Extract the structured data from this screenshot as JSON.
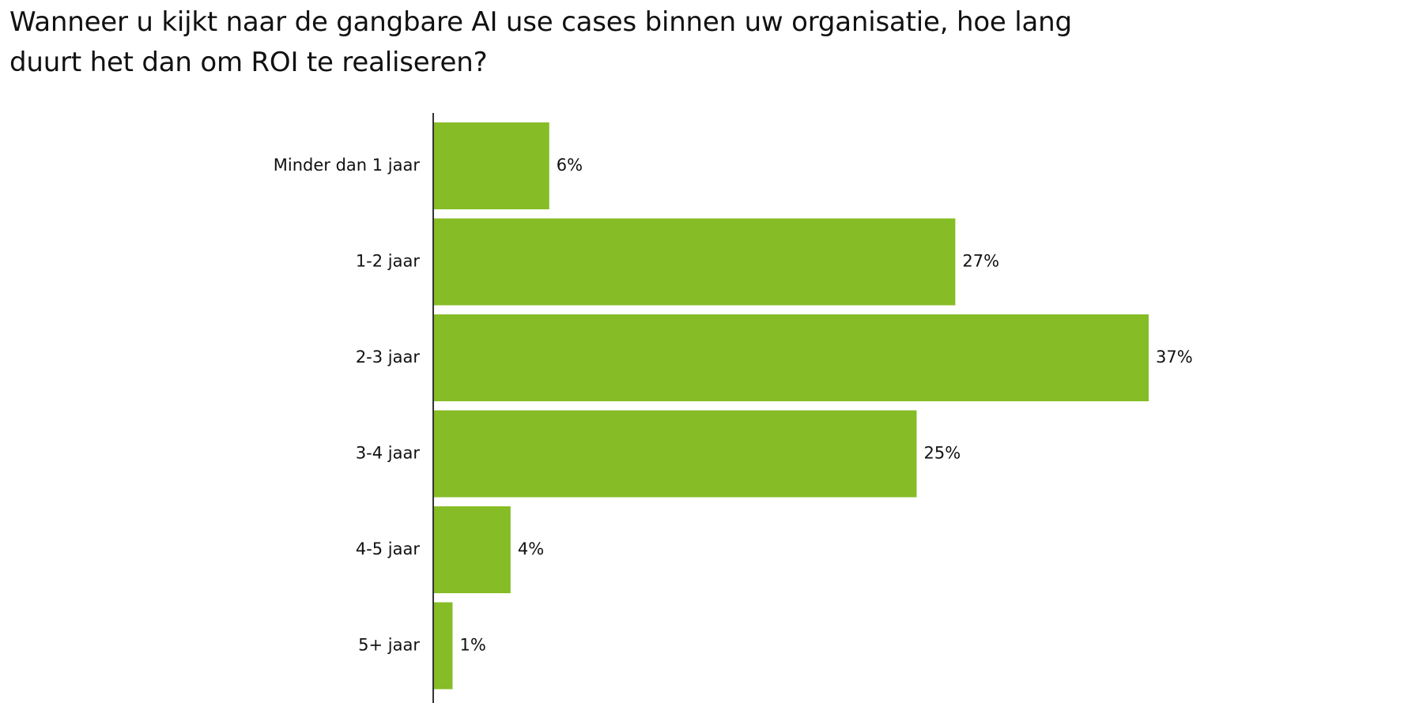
{
  "chart_data": {
    "type": "bar",
    "orientation": "horizontal",
    "title": "Wanneer u kijkt naar de gangbare AI use cases binnen uw organisatie, hoe lang duurt het dan om ROI te realiseren?",
    "categories": [
      "Minder dan 1 jaar",
      "1-2 jaar",
      "2-3 jaar",
      "3-4 jaar",
      "4-5 jaar",
      "5+ jaar"
    ],
    "values": [
      6,
      27,
      37,
      25,
      4,
      1
    ],
    "value_labels": [
      "6%",
      "27%",
      "37%",
      "25%",
      "4%",
      "1%"
    ],
    "xlim": [
      0,
      37
    ],
    "grid": false,
    "legend": "none",
    "bar_color": "#86bc25",
    "axis_color": "#333333"
  }
}
